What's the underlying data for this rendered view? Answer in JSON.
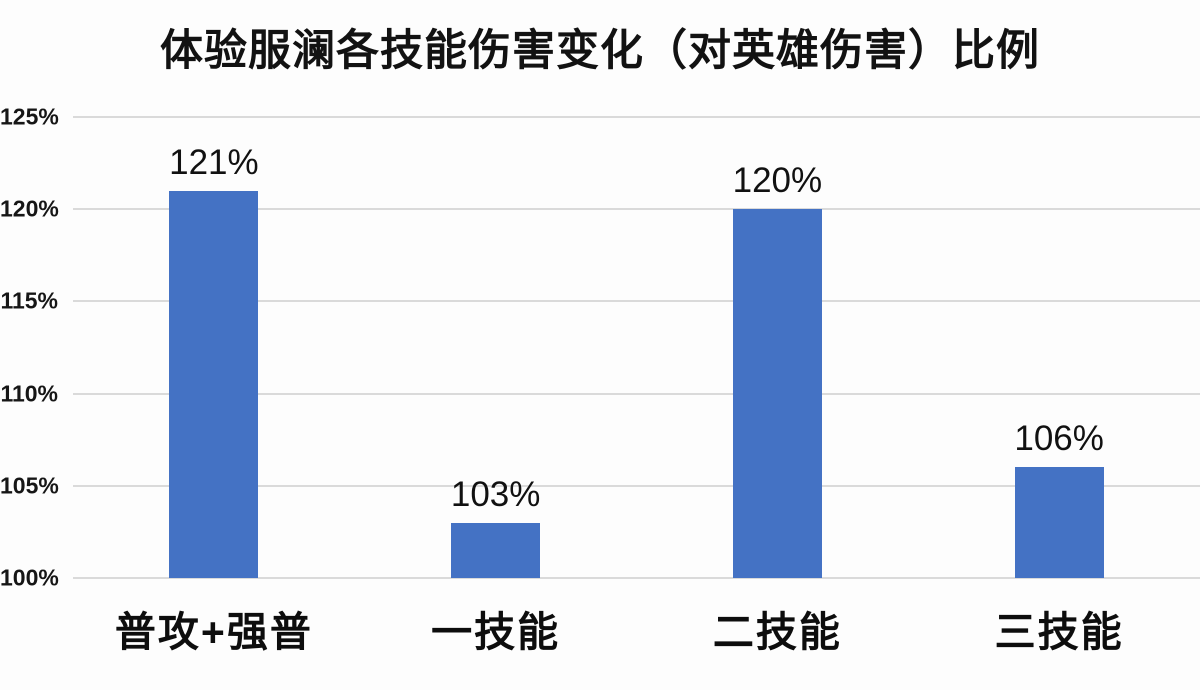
{
  "chart_data": {
    "type": "bar",
    "title": "体验服澜各技能伤害变化（对英雄伤害）比例",
    "categories": [
      "普攻+强普",
      "一技能",
      "二技能",
      "三技能"
    ],
    "values": [
      121,
      103,
      120,
      106
    ],
    "data_labels": [
      "121%",
      "103%",
      "120%",
      "106%"
    ],
    "xlabel": "",
    "ylabel": "",
    "ylim": [
      100,
      125
    ],
    "ytick_step": 5,
    "yticks": [
      100,
      105,
      110,
      115,
      120,
      125
    ],
    "ytick_labels": [
      "100%",
      "105%",
      "110%",
      "115%",
      "120%",
      "125%"
    ],
    "grid": true,
    "legend": "none",
    "bar_color": "#4472C4",
    "gridline_color": "#dadada",
    "background_color": "#fdfdfd",
    "text_color": "#111111"
  }
}
